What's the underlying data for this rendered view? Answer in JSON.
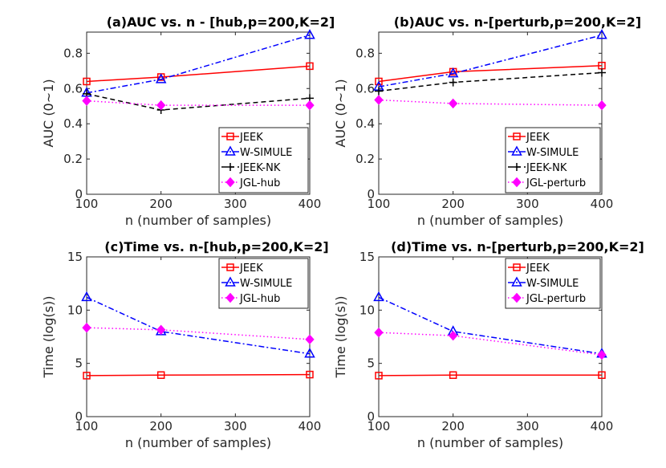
{
  "chart_data": [
    {
      "type": "line",
      "title": "(a)AUC vs. n - [hub,p=200,K=2]",
      "xlabel": "n (number of samples)",
      "ylabel": "AUC (0~1)",
      "x": [
        100,
        200,
        400
      ],
      "xticks": [
        "100",
        "200",
        "300",
        "400"
      ],
      "yticks": [
        "0",
        "0.2",
        "0.4",
        "0.6",
        "0.8"
      ],
      "xlim": [
        100,
        400
      ],
      "ylim": [
        0,
        0.92
      ],
      "legend_position": "bottom-right",
      "series": [
        {
          "name": "JEEK",
          "values": [
            0.64,
            0.665,
            0.727
          ],
          "color": "#ff0000",
          "marker": "square",
          "dash": "solid"
        },
        {
          "name": "W-SIMULE",
          "values": [
            0.575,
            0.652,
            0.903
          ],
          "color": "#0000ff",
          "marker": "triangle",
          "dash": "dashdot"
        },
        {
          "name": "JEEK-NK",
          "values": [
            0.57,
            0.478,
            0.545
          ],
          "color": "#000000",
          "marker": "plus",
          "dash": "dashed"
        },
        {
          "name": "JGL-hub",
          "values": [
            0.53,
            0.505,
            0.505
          ],
          "color": "#ff00ff",
          "marker": "diamond",
          "dash": "dotted"
        }
      ]
    },
    {
      "type": "line",
      "title": "(b)AUC vs. n-[perturb,p=200,K=2]",
      "xlabel": "n (number of samples)",
      "ylabel": "AUC (0~1)",
      "x": [
        100,
        200,
        400
      ],
      "xticks": [
        "100",
        "200",
        "300",
        "400"
      ],
      "yticks": [
        "0",
        "0.2",
        "0.4",
        "0.6",
        "0.8"
      ],
      "xlim": [
        100,
        400
      ],
      "ylim": [
        0,
        0.92
      ],
      "legend_position": "bottom-right",
      "series": [
        {
          "name": "JEEK",
          "values": [
            0.64,
            0.695,
            0.73
          ],
          "color": "#ff0000",
          "marker": "square",
          "dash": "solid"
        },
        {
          "name": "W-SIMULE",
          "values": [
            0.61,
            0.685,
            0.903
          ],
          "color": "#0000ff",
          "marker": "triangle",
          "dash": "dashdot"
        },
        {
          "name": "JEEK-NK",
          "values": [
            0.585,
            0.635,
            0.69
          ],
          "color": "#000000",
          "marker": "plus",
          "dash": "dashed"
        },
        {
          "name": "JGL-perturb",
          "values": [
            0.535,
            0.515,
            0.505
          ],
          "color": "#ff00ff",
          "marker": "diamond",
          "dash": "dotted"
        }
      ]
    },
    {
      "type": "line",
      "title": "(c)Time vs. n-[hub,p=200,K=2]",
      "xlabel": "n (number of samples)",
      "ylabel": "Time (log(s))",
      "x": [
        100,
        200,
        400
      ],
      "xticks": [
        "100",
        "200",
        "300",
        "400"
      ],
      "yticks": [
        "0",
        "5",
        "10",
        "15"
      ],
      "xlim": [
        100,
        400
      ],
      "ylim": [
        0,
        15
      ],
      "legend_position": "top-right",
      "series": [
        {
          "name": "JEEK",
          "values": [
            3.85,
            3.9,
            3.95
          ],
          "color": "#ff0000",
          "marker": "square",
          "dash": "solid"
        },
        {
          "name": "W-SIMULE",
          "values": [
            11.2,
            8.0,
            5.9
          ],
          "color": "#0000ff",
          "marker": "triangle",
          "dash": "dashdot"
        },
        {
          "name": "JGL-hub",
          "values": [
            8.35,
            8.15,
            7.25
          ],
          "color": "#ff00ff",
          "marker": "diamond",
          "dash": "dotted"
        }
      ]
    },
    {
      "type": "line",
      "title": "(d)Time vs. n-[perturb,p=200,K=2]",
      "xlabel": "n (number of samples)",
      "ylabel": "Time (log(s))",
      "x": [
        100,
        200,
        400
      ],
      "xticks": [
        "100",
        "200",
        "300",
        "400"
      ],
      "yticks": [
        "0",
        "5",
        "10",
        "15"
      ],
      "xlim": [
        100,
        400
      ],
      "ylim": [
        0,
        15
      ],
      "legend_position": "top-right",
      "series": [
        {
          "name": "JEEK",
          "values": [
            3.85,
            3.9,
            3.9
          ],
          "color": "#ff0000",
          "marker": "square",
          "dash": "solid"
        },
        {
          "name": "W-SIMULE",
          "values": [
            11.2,
            8.0,
            5.9
          ],
          "color": "#0000ff",
          "marker": "triangle",
          "dash": "dashdot"
        },
        {
          "name": "JGL-perturb",
          "values": [
            7.9,
            7.6,
            5.8
          ],
          "color": "#ff00ff",
          "marker": "diamond",
          "dash": "dotted"
        }
      ]
    }
  ]
}
